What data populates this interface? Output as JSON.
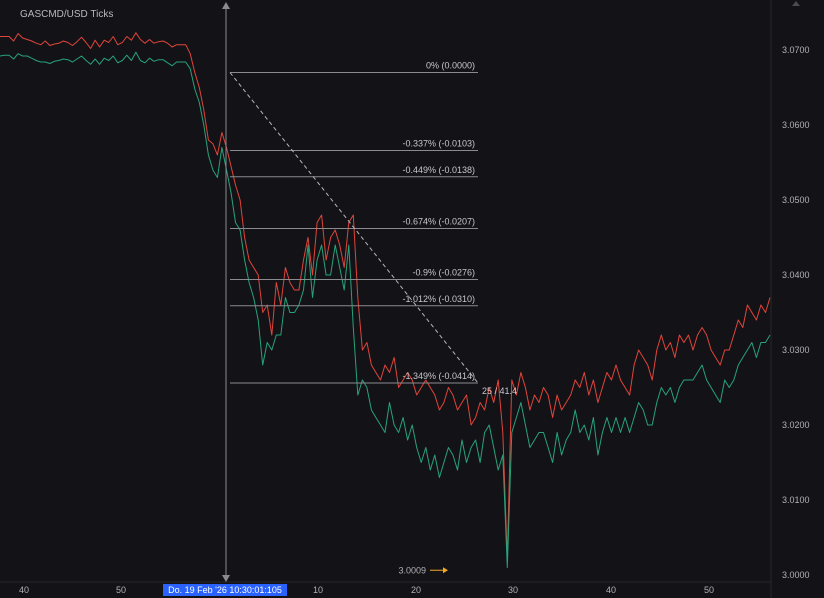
{
  "header": {
    "title": "GASCMD/USD Ticks"
  },
  "colors": {
    "background": "#131317",
    "bid_series": "#e0443a",
    "ask_series": "#27a27a",
    "fib_line": "#8a8a8f",
    "crosshair": "#8a8a8f",
    "crosshair_label_bg": "#2962ff",
    "low_marker": "#f5a623",
    "last_price": "#27c27a",
    "axis_text": "#b0b0b6"
  },
  "chart_data": {
    "type": "line",
    "title": "GASCMD/USD Ticks",
    "xlabel": "",
    "ylabel": "",
    "x_tick_labels": [
      "40",
      "50",
      "10",
      "20",
      "30",
      "40",
      "50"
    ],
    "y_tick_labels": [
      "3.0700",
      "3.0600",
      "3.0500",
      "3.0400",
      "3.0300",
      "3.0200",
      "3.0100",
      "3.0000"
    ],
    "ylim": [
      3.0,
      3.0725
    ],
    "grid": false,
    "crosshair_x_label": "Do. 19 Feb '26  10:30:01:105",
    "series": [
      {
        "values": [
          3.0718,
          3.0718,
          3.0718,
          3.0712,
          3.0722,
          3.0716,
          3.0714,
          3.0712,
          3.0709,
          3.0707,
          3.0712,
          3.0706,
          3.0708,
          3.0709,
          3.0712,
          3.071,
          3.0706,
          3.0711,
          3.0717,
          3.071,
          3.0702,
          3.0713,
          3.0704,
          3.0713,
          3.071,
          3.0718,
          3.0707,
          3.071,
          3.0718,
          3.0713,
          3.0723,
          3.0714,
          3.0709,
          3.0714,
          3.0709,
          3.0711,
          3.0712,
          3.0709,
          3.0704,
          3.0707,
          3.0707,
          3.0707,
          3.0695,
          3.067,
          3.065,
          3.062,
          3.058,
          3.0575,
          3.056,
          3.059,
          3.057,
          3.0545,
          3.052,
          3.05,
          3.045,
          3.042,
          3.041,
          3.04,
          3.035,
          3.036,
          3.032,
          3.039,
          3.036,
          3.041,
          3.039,
          3.038,
          3.038,
          3.042,
          3.045,
          3.04,
          3.047,
          3.048,
          3.042,
          3.045,
          3.046,
          3.044,
          3.041,
          3.047,
          3.048,
          3.037,
          3.03,
          3.031,
          3.028,
          3.027,
          3.026,
          3.028,
          3.027,
          3.029,
          3.025,
          3.026,
          3.027,
          3.026,
          3.024,
          3.025,
          3.026,
          3.025,
          3.024,
          3.022,
          3.023,
          3.025,
          3.024,
          3.022,
          3.023,
          3.024,
          3.02,
          3.021,
          3.023,
          3.022,
          3.025,
          3.023,
          3.026,
          3.019,
          3.0022,
          3.026,
          3.024,
          3.027,
          3.025,
          3.022,
          3.024,
          3.023,
          3.025,
          3.024,
          3.021,
          3.024,
          3.022,
          3.023,
          3.024,
          3.026,
          3.025,
          3.027,
          3.024,
          3.026,
          3.023,
          3.025,
          3.027,
          3.026,
          3.028,
          3.026,
          3.025,
          3.024,
          3.028,
          3.03,
          3.029,
          3.028,
          3.026,
          3.03,
          3.032,
          3.03,
          3.031,
          3.029,
          3.032,
          3.031,
          3.032,
          3.03,
          3.032,
          3.033,
          3.032,
          3.03,
          3.029,
          3.028,
          3.03,
          3.03,
          3.032,
          3.034,
          3.033,
          3.036,
          3.035,
          3.034,
          3.036,
          3.035,
          3.037
        ],
        "color": "#e0443a"
      },
      {
        "values": [
          3.0692,
          3.0693,
          3.0693,
          3.0688,
          3.0695,
          3.0692,
          3.0692,
          3.0689,
          3.0686,
          3.0684,
          3.0684,
          3.0682,
          3.0685,
          3.0686,
          3.0688,
          3.0687,
          3.0684,
          3.0688,
          3.0692,
          3.0686,
          3.0681,
          3.0688,
          3.0681,
          3.0689,
          3.0686,
          3.0692,
          3.0683,
          3.0686,
          3.0693,
          3.0686,
          3.0697,
          3.0686,
          3.0683,
          3.0689,
          3.0685,
          3.0687,
          3.0687,
          3.0683,
          3.0679,
          3.0684,
          3.0684,
          3.0684,
          3.0675,
          3.0648,
          3.063,
          3.06,
          3.056,
          3.054,
          3.053,
          3.057,
          3.054,
          3.051,
          3.047,
          3.046,
          3.042,
          3.039,
          3.037,
          3.034,
          3.028,
          3.031,
          3.03,
          3.032,
          3.032,
          3.037,
          3.035,
          3.035,
          3.036,
          3.038,
          3.044,
          3.037,
          3.042,
          3.044,
          3.04,
          3.04,
          3.044,
          3.041,
          3.038,
          3.044,
          3.033,
          3.024,
          3.026,
          3.025,
          3.022,
          3.021,
          3.02,
          3.019,
          3.023,
          3.02,
          3.019,
          3.021,
          3.018,
          3.02,
          3.017,
          3.015,
          3.017,
          3.014,
          3.016,
          3.013,
          3.015,
          3.017,
          3.016,
          3.014,
          3.018,
          3.015,
          3.017,
          3.018,
          3.015,
          3.019,
          3.02,
          3.017,
          3.014,
          3.016,
          3.001,
          3.019,
          3.021,
          3.023,
          3.02,
          3.017,
          3.018,
          3.019,
          3.019,
          3.017,
          3.015,
          3.019,
          3.016,
          3.018,
          3.019,
          3.022,
          3.019,
          3.02,
          3.018,
          3.021,
          3.016,
          3.019,
          3.021,
          3.019,
          3.021,
          3.019,
          3.021,
          3.019,
          3.021,
          3.023,
          3.022,
          3.02,
          3.02,
          3.023,
          3.025,
          3.024,
          3.025,
          3.023,
          3.025,
          3.026,
          3.026,
          3.026,
          3.027,
          3.028,
          3.026,
          3.025,
          3.024,
          3.023,
          3.026,
          3.025,
          3.026,
          3.028,
          3.029,
          3.03,
          3.031,
          3.029,
          3.031,
          3.031,
          3.032
        ],
        "color": "#27a27a"
      }
    ],
    "fibonacci": {
      "levels": [
        {
          "label": "0% (0.0000)",
          "price": 3.067
        },
        {
          "label": "-0.337% (-0.0103)",
          "price": 3.0566
        },
        {
          "label": "-0.449% (-0.0138)",
          "price": 3.0531
        },
        {
          "label": "-0.674% (-0.0207)",
          "price": 3.0462
        },
        {
          "label": "-0.9% (-0.0276)",
          "price": 3.0394
        },
        {
          "label": "-1.012% (-0.0310)",
          "price": 3.0359
        },
        {
          "label": "-1.349% (-0.0414)",
          "price": 3.0256
        }
      ],
      "ratio_label": "25 / 41.4"
    },
    "annotations": [
      {
        "text": "3.0009",
        "price": 3.0009
      }
    ],
    "last_price_label": "3.0000"
  }
}
